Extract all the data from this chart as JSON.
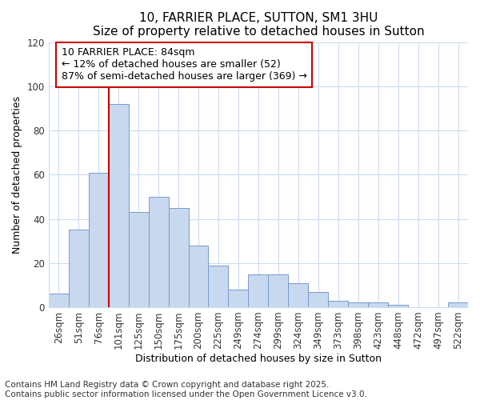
{
  "title": "10, FARRIER PLACE, SUTTON, SM1 3HU",
  "subtitle": "Size of property relative to detached houses in Sutton",
  "xlabel": "Distribution of detached houses by size in Sutton",
  "ylabel": "Number of detached properties",
  "footnote": "Contains HM Land Registry data © Crown copyright and database right 2025.\nContains public sector information licensed under the Open Government Licence v3.0.",
  "bar_color": "#c8d8ee",
  "bar_edge_color": "#7799cc",
  "annotation_box_color": "#cc0000",
  "vline_color": "#cc0000",
  "categories": [
    "26sqm",
    "51sqm",
    "76sqm",
    "101sqm",
    "125sqm",
    "150sqm",
    "175sqm",
    "200sqm",
    "225sqm",
    "249sqm",
    "274sqm",
    "299sqm",
    "324sqm",
    "349sqm",
    "373sqm",
    "398sqm",
    "423sqm",
    "448sqm",
    "472sqm",
    "497sqm",
    "522sqm"
  ],
  "values": [
    6,
    35,
    61,
    92,
    43,
    50,
    45,
    28,
    19,
    8,
    15,
    15,
    11,
    7,
    3,
    2,
    2,
    1,
    0,
    0,
    2
  ],
  "vline_position": 2.5,
  "annotation_text": "10 FARRIER PLACE: 84sqm\n← 12% of detached houses are smaller (52)\n87% of semi-detached houses are larger (369) →",
  "ylim": [
    0,
    120
  ],
  "yticks": [
    0,
    20,
    40,
    60,
    80,
    100,
    120
  ],
  "bg_color": "#ffffff",
  "plot_bg_color": "#ffffff",
  "grid_color": "#ccddee",
  "title_fontsize": 11,
  "subtitle_fontsize": 10,
  "axis_label_fontsize": 9,
  "tick_fontsize": 8.5,
  "footnote_fontsize": 7.5,
  "annotation_fontsize": 9
}
